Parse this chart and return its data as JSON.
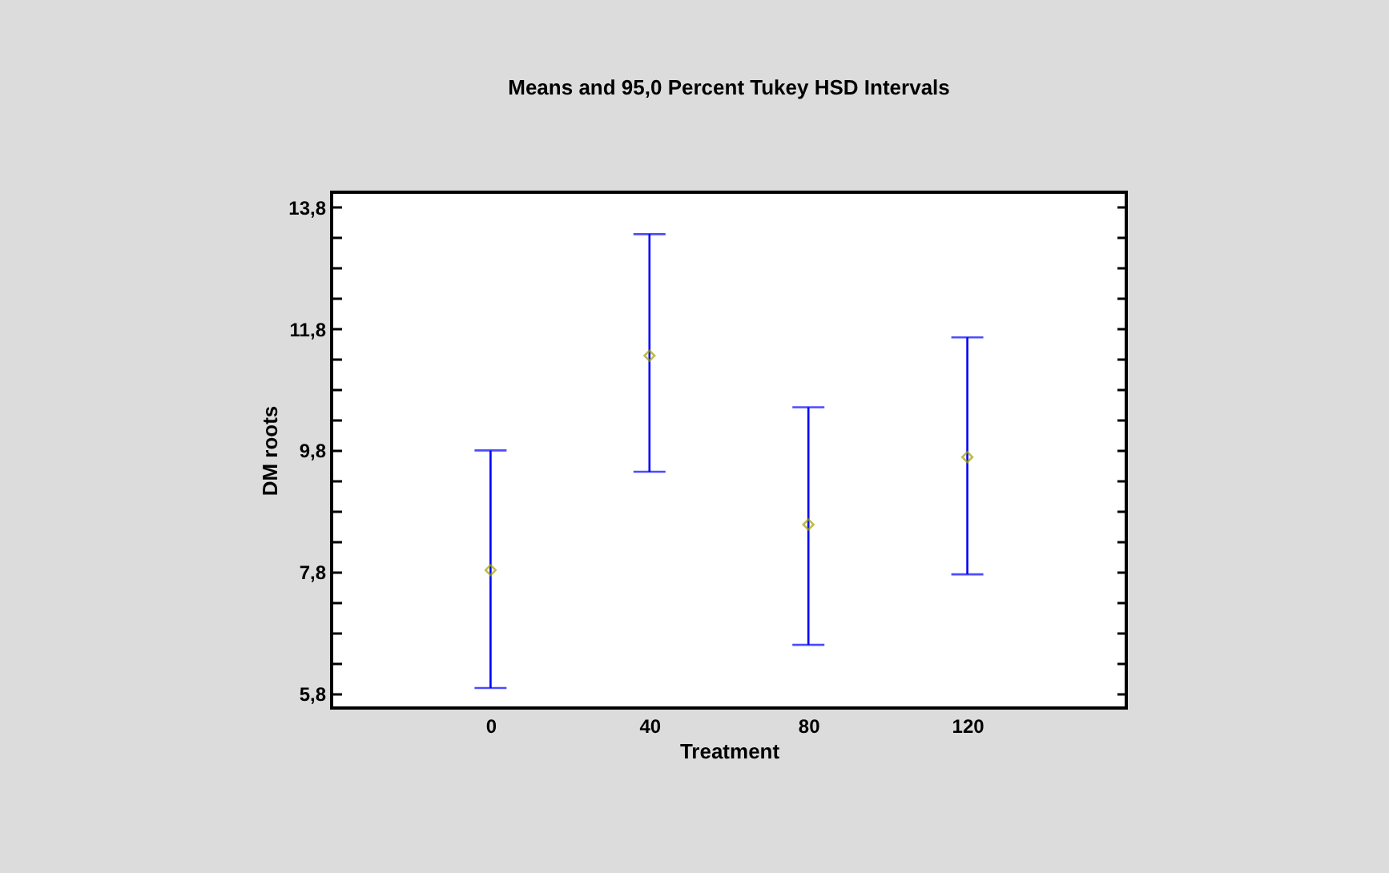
{
  "chart_data": {
    "type": "scatter",
    "title": "Means and 95,0 Percent Tukey HSD Intervals",
    "xlabel": "Treatment",
    "ylabel": "DM roots",
    "categories": [
      "0",
      "40",
      "80",
      "120"
    ],
    "series": [
      {
        "color": "#a0a000",
        "values": [
          7.83,
          11.36,
          8.58,
          9.69
        ],
        "errors": [
          [
            5.89,
            9.8
          ],
          [
            9.45,
            13.36
          ],
          [
            6.6,
            10.51
          ],
          [
            7.76,
            11.66
          ]
        ]
      }
    ],
    "marker": "diamond",
    "ylim": [
      5.56,
      14.05
    ],
    "yticks": [
      {
        "value": 5.8,
        "label": "5,8"
      },
      {
        "value": 6.3,
        "label": null
      },
      {
        "value": 6.8,
        "label": null
      },
      {
        "value": 7.3,
        "label": null
      },
      {
        "value": 7.8,
        "label": "7,8"
      },
      {
        "value": 8.3,
        "label": null
      },
      {
        "value": 8.8,
        "label": null
      },
      {
        "value": 9.3,
        "label": null
      },
      {
        "value": 9.8,
        "label": "9,8"
      },
      {
        "value": 10.3,
        "label": null
      },
      {
        "value": 10.8,
        "label": null
      },
      {
        "value": 11.3,
        "label": null
      },
      {
        "value": 11.8,
        "label": "11,8"
      },
      {
        "value": 12.3,
        "label": null
      },
      {
        "value": 12.8,
        "label": null
      },
      {
        "value": 13.3,
        "label": null
      },
      {
        "value": 13.8,
        "label": "13,8"
      }
    ]
  }
}
